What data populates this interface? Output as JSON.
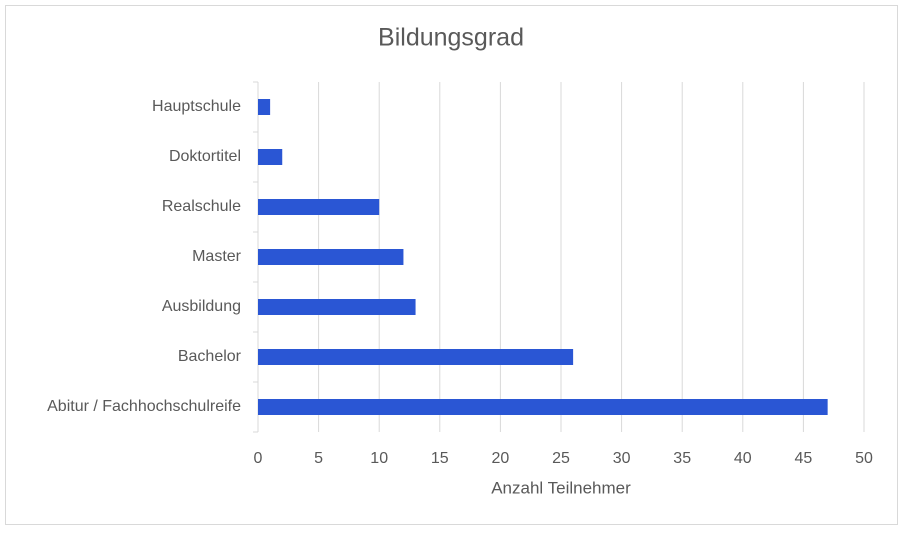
{
  "chart_data": {
    "type": "bar",
    "orientation": "horizontal",
    "title": "Bildungsgrad",
    "categories": [
      "Hauptschule",
      "Doktortitel",
      "Realschule",
      "Master",
      "Ausbildung",
      "Bachelor",
      "Abitur / Fachhochschulreife"
    ],
    "values": [
      1,
      2,
      10,
      12,
      13,
      26,
      47
    ],
    "color": "#2a56d4",
    "x_label": "Anzahl Teilnehmer",
    "xlim": [
      0,
      50
    ],
    "xticks": [
      0,
      5,
      10,
      15,
      20,
      25,
      30,
      35,
      40,
      45,
      50
    ],
    "grid": true
  }
}
